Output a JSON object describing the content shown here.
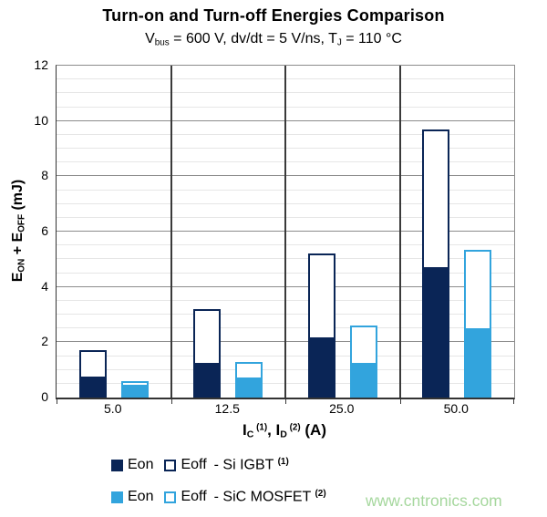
{
  "title": "Turn-on and Turn-off Energies Comparison",
  "subtitle": {
    "p1": "V",
    "s1": "bus",
    "p2": " = 600 V, dv/dt = 5 V/ns, T",
    "s2": "J",
    "p3": " = 110 °C"
  },
  "y_axis": {
    "p1": "E",
    "s1": "ON",
    "p2": " + E",
    "s2": "OFF",
    "p3": " (mJ)",
    "ticks": [
      "0",
      "2",
      "4",
      "6",
      "8",
      "10",
      "12"
    ]
  },
  "x_axis": {
    "p1": "I",
    "s1": "C",
    "sup1": "(1)",
    "p2": ", I",
    "s2": "D",
    "sup2": "(2)",
    "p3": " (A)",
    "tick_labels": [
      "5.0",
      "12.5",
      "25.0",
      "50.0"
    ]
  },
  "chart_data": {
    "type": "bar",
    "stacked": true,
    "title": "Turn-on and Turn-off Energies Comparison",
    "subtitle": "Vbus = 600 V, dv/dt = 5 V/ns, TJ = 110 °C",
    "xlabel": "IC (1), ID (2) (A)",
    "ylabel": "EON + EOFF (mJ)",
    "ylim": [
      0,
      12
    ],
    "y_major_step": 2,
    "y_minor_step": 0.5,
    "grid": true,
    "categories": [
      5.0,
      12.5,
      25.0,
      50.0
    ],
    "series": [
      {
        "name": "Eon - Si IGBT",
        "values": [
          0.7,
          1.2,
          2.1,
          4.65
        ]
      },
      {
        "name": "Eoff - Si IGBT",
        "values": [
          1.0,
          2.0,
          3.1,
          5.05
        ]
      },
      {
        "name": "Eon - SiC MOSFET",
        "values": [
          0.4,
          0.65,
          1.2,
          2.45
        ]
      },
      {
        "name": "Eoff - SiC MOSFET",
        "values": [
          0.2,
          0.65,
          1.4,
          2.9
        ]
      }
    ],
    "totals": {
      "si_igbt": [
        1.7,
        3.2,
        5.2,
        9.7
      ],
      "sic_mosfet": [
        0.6,
        1.3,
        2.6,
        5.35
      ]
    },
    "pairs": [
      {
        "key": "si-igbt",
        "eon": 0,
        "eoff": 1,
        "color_key": "si_igbt"
      },
      {
        "key": "sic-mosfet",
        "eon": 2,
        "eoff": 3,
        "color_key": "sic_mosfet"
      }
    ],
    "legend_position": "bottom"
  },
  "legend": {
    "si": {
      "eon": "Eon",
      "eoff": "Eoff",
      "label": "- Si IGBT ",
      "sup": "(1)"
    },
    "sic": {
      "eon": "Eon",
      "eoff": "Eoff",
      "label": "- SiC MOSFET ",
      "sup": "(2)"
    }
  },
  "watermark": "www.cntronics.com",
  "colors": {
    "si_igbt": "#0a2556",
    "sic_mosfet": "#32a4dd",
    "grid_major": "#8c8c8c",
    "grid_minor": "#e6e6e6",
    "axis": "#3a3a3a",
    "watermark": "#a5d79d"
  }
}
